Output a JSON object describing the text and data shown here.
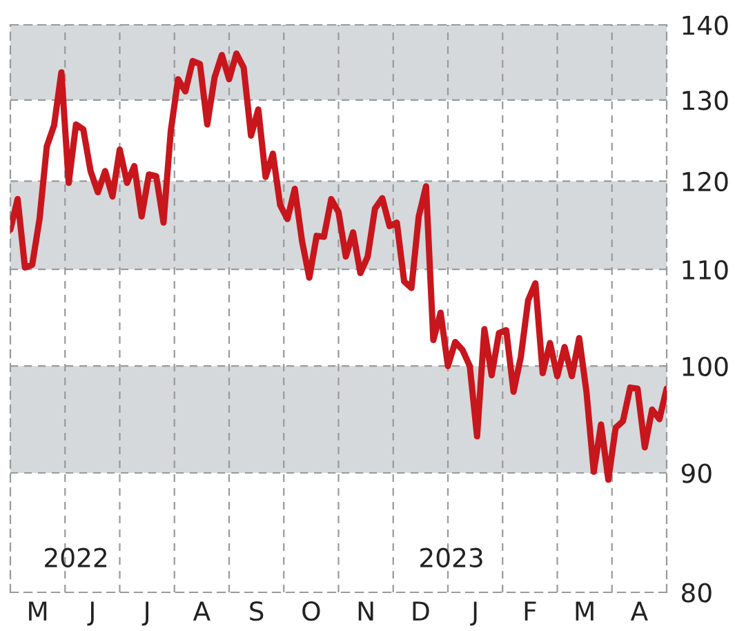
{
  "chart_data": {
    "type": "line",
    "categories": [
      null,
      null,
      null,
      null,
      null,
      null,
      null,
      null,
      null,
      null,
      null,
      null,
      null,
      null,
      null,
      null,
      null,
      null,
      null,
      null,
      null,
      null,
      null,
      null,
      null,
      null,
      null,
      null,
      null,
      null,
      null,
      null,
      null,
      null,
      null,
      null,
      null,
      null,
      null,
      null,
      null,
      null,
      null,
      null,
      null,
      null,
      null,
      null,
      null,
      null,
      null,
      null,
      null,
      null,
      null,
      null,
      null,
      null,
      null,
      null,
      null,
      null,
      null,
      null,
      null,
      null,
      null,
      null,
      null,
      null,
      null,
      null,
      null,
      null,
      null,
      null,
      null,
      null,
      null,
      null,
      null,
      null,
      null,
      null,
      null,
      null,
      null,
      null,
      null,
      null,
      null
    ],
    "series": [
      {
        "color": "#c8161d",
        "values": [
          114.4,
          117.9,
          110.2,
          110.5,
          115.6,
          124.2,
          126.8,
          133.6,
          119.8,
          126.9,
          126.3,
          121.2,
          118.7,
          121.2,
          118.2,
          123.8,
          119.8,
          121.8,
          115.9,
          120.8,
          120.6,
          115.2,
          126.1,
          132.7,
          131.1,
          135.1,
          134.7,
          126.9,
          132.9,
          135.9,
          132.7,
          136.1,
          134.2,
          125.5,
          128.8,
          120.5,
          123.3,
          117.2,
          115.6,
          119.1,
          113.1,
          109.1,
          113.7,
          113.6,
          117.9,
          116.4,
          111.4,
          114.1,
          109.6,
          111.4,
          116.8,
          118.0,
          114.8,
          115.2,
          108.7,
          108.0,
          115.9,
          119.4,
          102.6,
          105.4,
          100.0,
          102.4,
          101.6,
          100.0,
          93.3,
          103.7,
          99.1,
          103.3,
          103.6,
          97.5,
          100.9,
          106.7,
          108.5,
          99.3,
          102.3,
          99.0,
          101.9,
          99.0,
          102.8,
          97.5,
          90.1,
          94.4,
          89.4,
          94.1,
          94.7,
          97.9,
          97.8,
          92.3,
          95.8,
          94.9,
          97.8
        ]
      }
    ],
    "log": "y",
    "ylim": [
      80,
      140
    ],
    "yticks": [
      80,
      90,
      100,
      110,
      120,
      130,
      140
    ],
    "grid": true,
    "line_style": "solid",
    "marker": "none",
    "bands": [
      {
        "axis": "y",
        "from": 90,
        "to": 100,
        "color": "#d5d9dc"
      },
      {
        "axis": "y",
        "from": 110,
        "to": 120,
        "color": "#d5d9dc"
      },
      {
        "axis": "y",
        "from": 130,
        "to": 140,
        "color": "#d5d9dc"
      }
    ],
    "annotations": [
      "2022",
      "2023",
      "M",
      "J",
      "J",
      "A",
      "S",
      "O",
      "N",
      "D",
      "J",
      "F",
      "M",
      "A"
    ]
  }
}
